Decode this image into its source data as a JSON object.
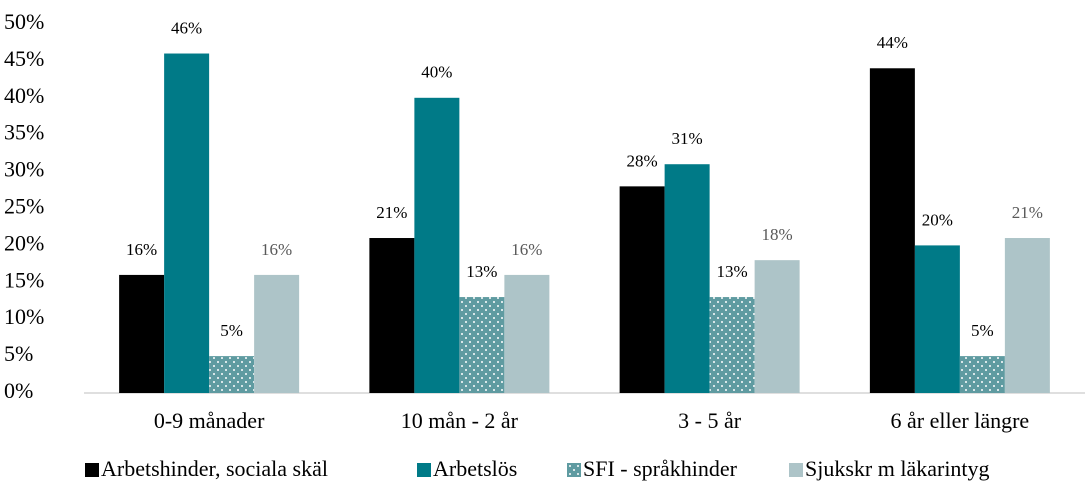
{
  "chart_data": {
    "type": "bar",
    "categories": [
      "0-9 månader",
      "10 mån - 2 år",
      "3 - 5 år",
      "6 år eller längre"
    ],
    "series": [
      {
        "name": "Arbetshinder, sociala skäl",
        "color": "#000000",
        "values": [
          16,
          21,
          28,
          44
        ],
        "value_labels": [
          "16%",
          "21%",
          "28%",
          "44%"
        ]
      },
      {
        "name": "Arbetslös",
        "color": "#007a87",
        "values": [
          46,
          40,
          31,
          20
        ],
        "value_labels": [
          "46%",
          "40%",
          "31%",
          "20%"
        ]
      },
      {
        "name": "SFI - språkhinder",
        "color": "#5f9ba1",
        "values": [
          5,
          13,
          13,
          5
        ],
        "value_labels": [
          "5%",
          "13%",
          "13%",
          "5%"
        ]
      },
      {
        "name": "Sjukskr m läkarintyg",
        "color": "#adc4c8",
        "values": [
          16,
          16,
          18,
          21
        ],
        "value_labels": [
          "16%",
          "16%",
          "18%",
          "21%"
        ]
      }
    ],
    "ylim": [
      0,
      50
    ],
    "yticks": [
      {
        "value": 0,
        "label": "0%"
      },
      {
        "value": 5,
        "label": "5%"
      },
      {
        "value": 10,
        "label": "10%"
      },
      {
        "value": 15,
        "label": "15%"
      },
      {
        "value": 20,
        "label": "20%"
      },
      {
        "value": 25,
        "label": "25%"
      },
      {
        "value": 30,
        "label": "30%"
      },
      {
        "value": 35,
        "label": "35%"
      },
      {
        "value": 40,
        "label": "40%"
      },
      {
        "value": 45,
        "label": "45%"
      },
      {
        "value": 50,
        "label": "50%"
      }
    ],
    "grid": false,
    "legend": "bottom"
  }
}
